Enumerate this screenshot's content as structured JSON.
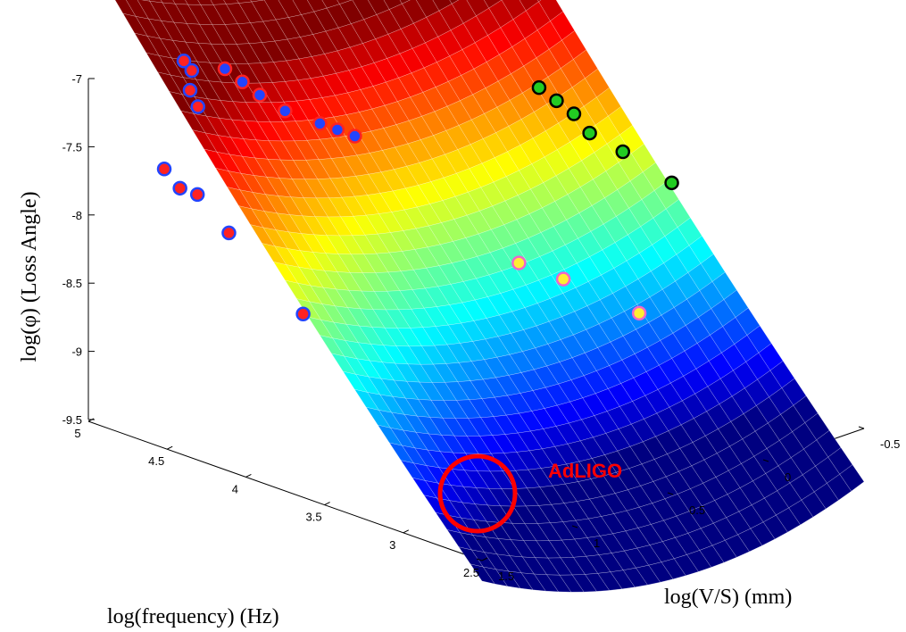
{
  "chart_data": {
    "type": "surface3d",
    "title": "",
    "zlabel": "log(φ) (Loss Angle)",
    "xlabel": "log(frequency) (Hz)",
    "ylabel": "log(V/S) (mm)",
    "zlim": [
      -9.5,
      -7
    ],
    "xlim": [
      2.5,
      5
    ],
    "ylim": [
      -0.5,
      1.5
    ],
    "z_ticks": [
      {
        "v": -7,
        "t": "-7"
      },
      {
        "v": -7.5,
        "t": "-7.5"
      },
      {
        "v": -8,
        "t": "-8"
      },
      {
        "v": -8.5,
        "t": "-8.5"
      },
      {
        "v": -9,
        "t": "-9"
      },
      {
        "v": -9.5,
        "t": "-9.5"
      }
    ],
    "x_ticks": [
      {
        "v": 5,
        "t": "5"
      },
      {
        "v": 4.5,
        "t": "4.5"
      },
      {
        "v": 4,
        "t": "4"
      },
      {
        "v": 3.5,
        "t": "3.5"
      },
      {
        "v": 3,
        "t": "3"
      },
      {
        "v": 2.5,
        "t": "2.5"
      }
    ],
    "y_ticks": [
      {
        "v": 1.5,
        "t": "1.5"
      },
      {
        "v": 1,
        "t": "1"
      },
      {
        "v": 0.5,
        "t": "0.5"
      },
      {
        "v": 0,
        "t": "0"
      },
      {
        "v": -0.5,
        "t": "-0.5"
      }
    ],
    "surface_colormap": "jet",
    "series": [
      {
        "color": "#ff2222",
        "edge": "#2244ff",
        "points": [
          {
            "x": 5.0,
            "y": 1.0,
            "z": -7.1
          },
          {
            "x": 4.95,
            "y": 1.0,
            "z": -7.15
          },
          {
            "x": 4.9,
            "y": 1.05,
            "z": -7.25
          },
          {
            "x": 4.85,
            "y": 1.05,
            "z": -7.35
          },
          {
            "x": 4.7,
            "y": 1.35,
            "z": -7.6
          },
          {
            "x": 4.6,
            "y": 1.35,
            "z": -7.7
          },
          {
            "x": 4.55,
            "y": 1.3,
            "z": -7.75
          },
          {
            "x": 4.35,
            "y": 1.3,
            "z": -7.95
          },
          {
            "x": 4.0,
            "y": 1.2,
            "z": -8.45
          }
        ]
      },
      {
        "color": "#2244ff",
        "edge": "#ff2222",
        "points": [
          {
            "x": 4.8,
            "y": 0.95,
            "z": -7.1
          },
          {
            "x": 4.75,
            "y": 0.9,
            "z": -7.2
          },
          {
            "x": 4.7,
            "y": 0.85,
            "z": -7.3
          },
          {
            "x": 4.6,
            "y": 0.8,
            "z": -7.4
          },
          {
            "x": 4.5,
            "y": 0.7,
            "z": -7.5
          },
          {
            "x": 4.45,
            "y": 0.65,
            "z": -7.55
          },
          {
            "x": 4.4,
            "y": 0.6,
            "z": -7.6
          }
        ]
      },
      {
        "color": "#22cc22",
        "edge": "#000000",
        "points": [
          {
            "x": 4.2,
            "y": -0.2,
            "z": -7.55
          },
          {
            "x": 4.15,
            "y": -0.25,
            "z": -7.65
          },
          {
            "x": 4.1,
            "y": -0.3,
            "z": -7.75
          },
          {
            "x": 4.0,
            "y": -0.3,
            "z": -7.85
          },
          {
            "x": 3.85,
            "y": -0.35,
            "z": -7.95
          },
          {
            "x": 3.6,
            "y": -0.4,
            "z": -8.1
          }
        ]
      },
      {
        "color": "#ffee33",
        "edge": "#ee66cc",
        "points": [
          {
            "x": 3.6,
            "y": 0.4,
            "z": -8.3
          },
          {
            "x": 3.5,
            "y": 0.25,
            "z": -8.45
          },
          {
            "x": 3.2,
            "y": 0.1,
            "z": -8.65
          }
        ]
      }
    ],
    "annotation": {
      "text": "AdLIGO",
      "x": 2.5,
      "y": 1.5,
      "z": -9.5
    }
  }
}
